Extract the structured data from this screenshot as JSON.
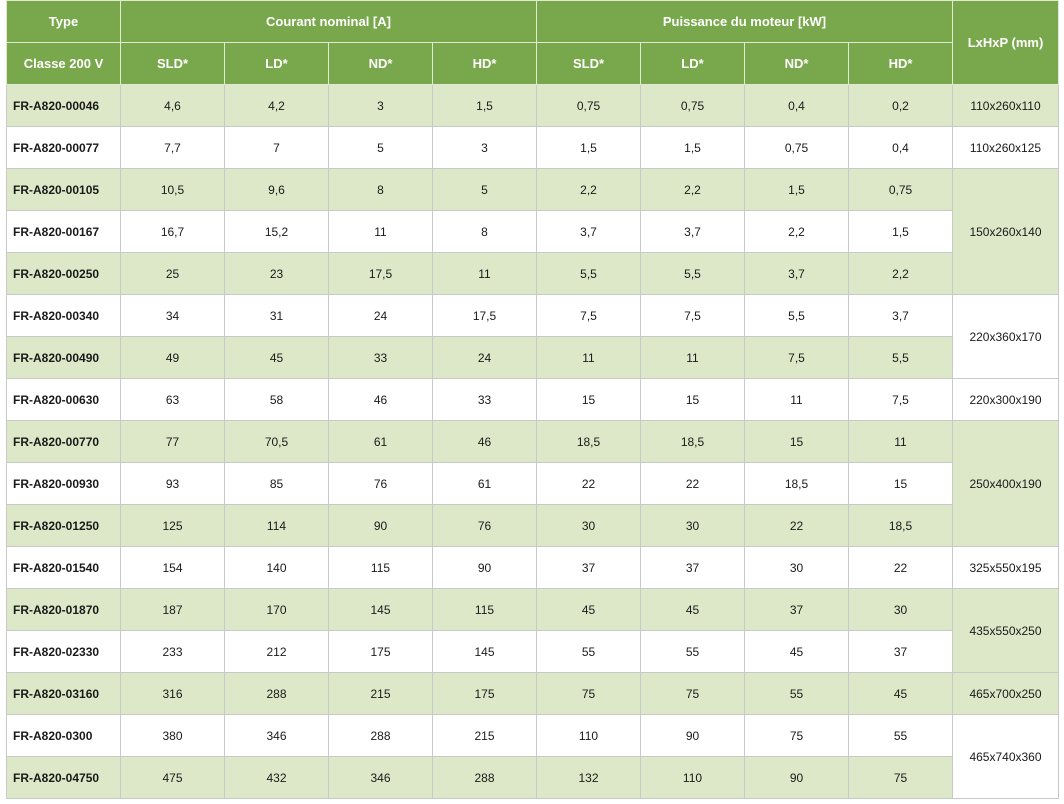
{
  "header": {
    "type_label": "Type",
    "class_label": "Classe 200 V",
    "current_group": "Courant nominal [A]",
    "power_group": "Puissance du moteur [kW]",
    "dimensions_label": "LxHxP (mm)",
    "current_cols": [
      "SLD*",
      "LD*",
      "ND*",
      "HD*"
    ],
    "power_cols": [
      "SLD*",
      "LD*",
      "ND*",
      "HD*"
    ]
  },
  "rows": [
    {
      "type": "FR-A820-00046",
      "current": [
        "4,6",
        "4,2",
        "3",
        "1,5"
      ],
      "power": [
        "0,75",
        "0,75",
        "0,4",
        "0,2"
      ]
    },
    {
      "type": "FR-A820-00077",
      "current": [
        "7,7",
        "7",
        "5",
        "3"
      ],
      "power": [
        "1,5",
        "1,5",
        "0,75",
        "0,4"
      ]
    },
    {
      "type": "FR-A820-00105",
      "current": [
        "10,5",
        "9,6",
        "8",
        "5"
      ],
      "power": [
        "2,2",
        "2,2",
        "1,5",
        "0,75"
      ]
    },
    {
      "type": "FR-A820-00167",
      "current": [
        "16,7",
        "15,2",
        "11",
        "8"
      ],
      "power": [
        "3,7",
        "3,7",
        "2,2",
        "1,5"
      ]
    },
    {
      "type": "FR-A820-00250",
      "current": [
        "25",
        "23",
        "17,5",
        "11"
      ],
      "power": [
        "5,5",
        "5,5",
        "3,7",
        "2,2"
      ]
    },
    {
      "type": "FR-A820-00340",
      "current": [
        "34",
        "31",
        "24",
        "17,5"
      ],
      "power": [
        "7,5",
        "7,5",
        "5,5",
        "3,7"
      ]
    },
    {
      "type": "FR-A820-00490",
      "current": [
        "49",
        "45",
        "33",
        "24"
      ],
      "power": [
        "11",
        "11",
        "7,5",
        "5,5"
      ]
    },
    {
      "type": "FR-A820-00630",
      "current": [
        "63",
        "58",
        "46",
        "33"
      ],
      "power": [
        "15",
        "15",
        "11",
        "7,5"
      ]
    },
    {
      "type": "FR-A820-00770",
      "current": [
        "77",
        "70,5",
        "61",
        "46"
      ],
      "power": [
        "18,5",
        "18,5",
        "15",
        "11"
      ]
    },
    {
      "type": "FR-A820-00930",
      "current": [
        "93",
        "85",
        "76",
        "61"
      ],
      "power": [
        "22",
        "22",
        "18,5",
        "15"
      ]
    },
    {
      "type": "FR-A820-01250",
      "current": [
        "125",
        "114",
        "90",
        "76"
      ],
      "power": [
        "30",
        "30",
        "22",
        "18,5"
      ]
    },
    {
      "type": "FR-A820-01540",
      "current": [
        "154",
        "140",
        "115",
        "90"
      ],
      "power": [
        "37",
        "37",
        "30",
        "22"
      ]
    },
    {
      "type": "FR-A820-01870",
      "current": [
        "187",
        "170",
        "145",
        "115"
      ],
      "power": [
        "45",
        "45",
        "37",
        "30"
      ]
    },
    {
      "type": "FR-A820-02330",
      "current": [
        "233",
        "212",
        "175",
        "145"
      ],
      "power": [
        "55",
        "55",
        "45",
        "37"
      ]
    },
    {
      "type": "FR-A820-03160",
      "current": [
        "316",
        "288",
        "215",
        "175"
      ],
      "power": [
        "75",
        "75",
        "55",
        "45"
      ]
    },
    {
      "type": "FR-A820-0300",
      "current": [
        "380",
        "346",
        "288",
        "215"
      ],
      "power": [
        "110",
        "90",
        "75",
        "55"
      ]
    },
    {
      "type": "FR-A820-04750",
      "current": [
        "475",
        "432",
        "346",
        "288"
      ],
      "power": [
        "132",
        "110",
        "90",
        "75"
      ]
    }
  ],
  "dimensions": [
    {
      "value": "110x260x110",
      "rows": 1,
      "shade": true
    },
    {
      "value": "110x260x125",
      "rows": 1,
      "shade": false
    },
    {
      "value": "150x260x140",
      "rows": 3,
      "shade": true
    },
    {
      "value": "220x360x170",
      "rows": 2,
      "shade": false
    },
    {
      "value": "220x300x190",
      "rows": 1,
      "shade": false
    },
    {
      "value": "250x400x190",
      "rows": 3,
      "shade": true
    },
    {
      "value": "325x550x195",
      "rows": 1,
      "shade": false
    },
    {
      "value": "435x550x250",
      "rows": 2,
      "shade": true
    },
    {
      "value": "465x700x250",
      "rows": 1,
      "shade": true
    },
    {
      "value": "465x740x360",
      "rows": 2,
      "shade": false
    }
  ],
  "colors": {
    "header_bg": "#79a84c",
    "header_text": "#ffffff",
    "row_shade": "#dde8c8",
    "row_plain": "#ffffff"
  }
}
